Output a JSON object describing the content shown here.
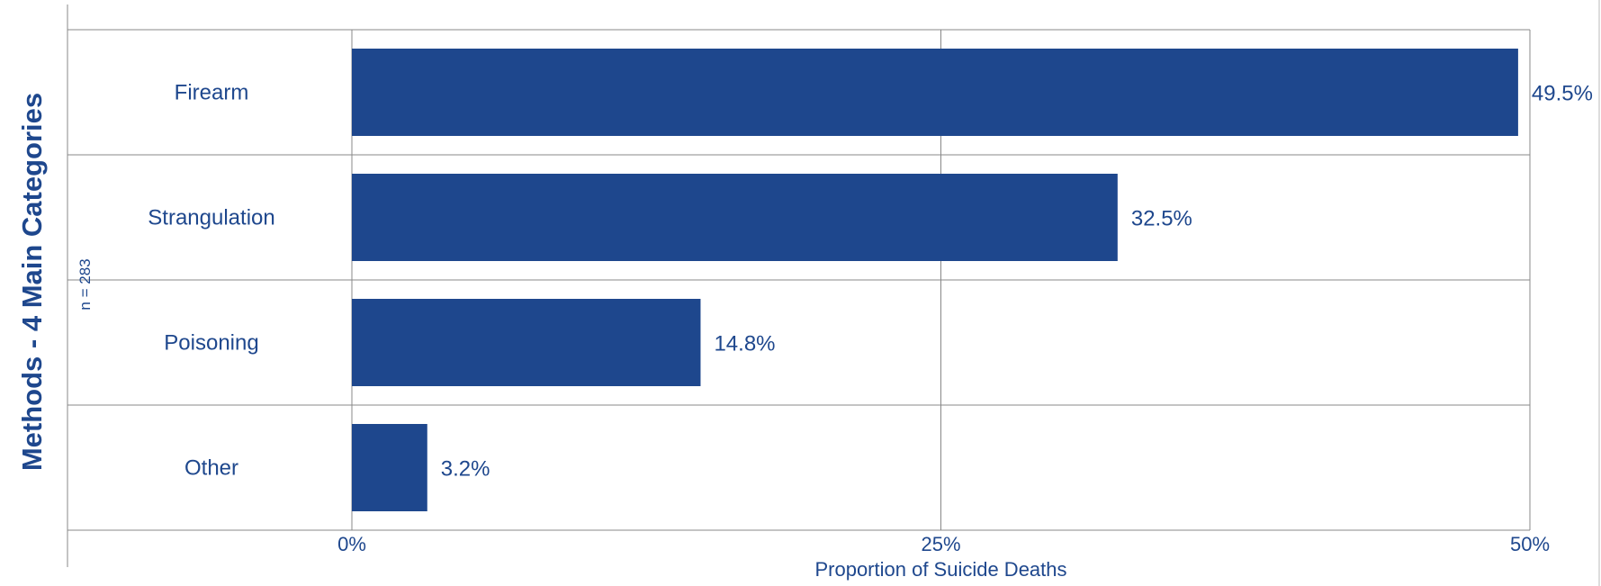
{
  "chart_data": {
    "type": "bar",
    "orientation": "horizontal",
    "categories": [
      "Firearm",
      "Strangulation",
      "Poisoning",
      "Other"
    ],
    "values": [
      49.5,
      32.5,
      14.8,
      3.2
    ],
    "value_labels": [
      "49.5%",
      "32.5%",
      "14.8%",
      "3.2%"
    ],
    "xlim": [
      0,
      50
    ],
    "xticks": [
      0,
      25,
      50
    ],
    "xtick_labels": [
      "0%",
      "25%",
      "50%"
    ],
    "xlabel": "Proportion of Suicide Deaths",
    "ylabel": "Methods - 4 Main Categories",
    "annotation": "n = 283",
    "grid": true,
    "legend": "none",
    "colors": {
      "bar": "#1e478d",
      "text": "#1e478d",
      "grid": "#888888"
    }
  }
}
